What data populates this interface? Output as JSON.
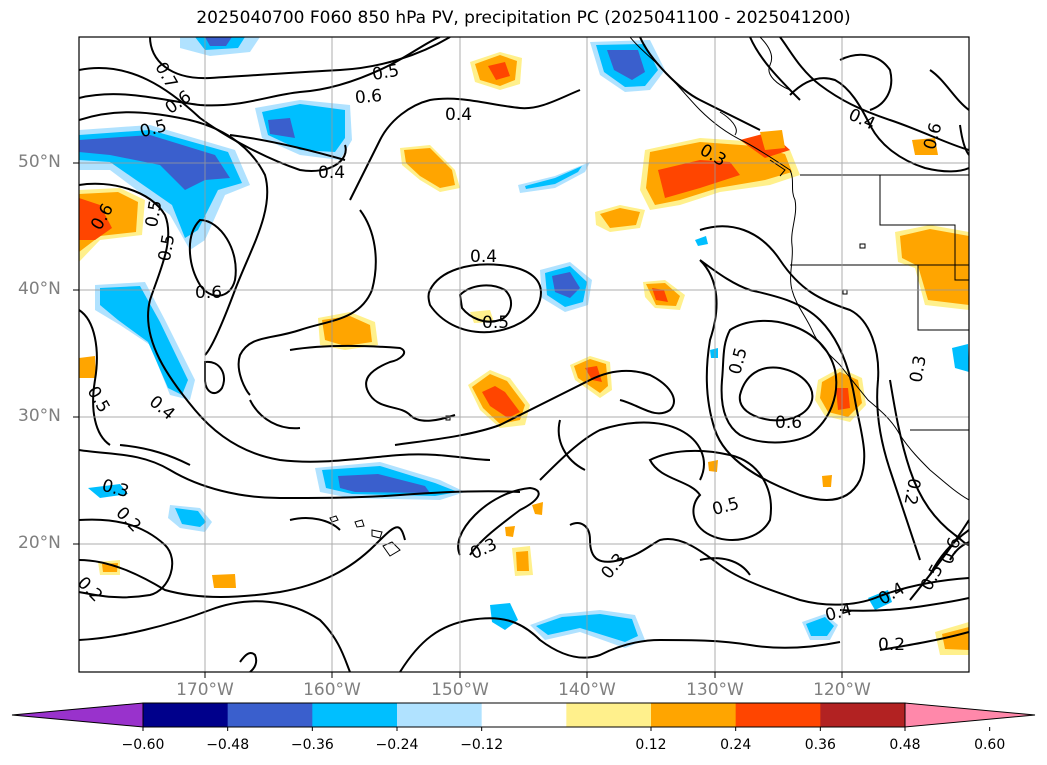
{
  "title": "2025040700 F060 850 hPa PV, precipitation PC (2025041100 - 2025041200)",
  "lat_labels": [
    "50°N",
    "40°N",
    "30°N",
    "20°N"
  ],
  "lon_labels": [
    "170°W",
    "160°W",
    "150°W",
    "140°W",
    "130°W",
    "120°W"
  ],
  "contour_labels": [
    "0.7",
    "0.6",
    "0.5",
    "0.6",
    "0.5",
    "0.5",
    "0.6",
    "0.4",
    "0.5",
    "0.3",
    "0.2",
    "0.2",
    "0.6",
    "0.4",
    "0.4",
    "0.5",
    "0.3",
    "0.4",
    "0.5",
    "0.6",
    "0.5",
    "0.3",
    "0.4",
    "0.2",
    "0.4",
    "0.5",
    "0.6",
    "0.3",
    "0.2",
    "0.4",
    "0.6",
    "0.5",
    "0.3"
  ],
  "colorbar": {
    "ticks": [
      "−0.60",
      "−0.48",
      "−0.36",
      "−0.24",
      "−0.12",
      "0.12",
      "0.24",
      "0.36",
      "0.48",
      "0.60"
    ],
    "colors": [
      "#9932cc",
      "#00008b",
      "#3a5fcd",
      "#00bfff",
      "#b0e2ff",
      "#ffffff",
      "#fff08c",
      "#ffa500",
      "#ff4500",
      "#b22222",
      "#ff88aa"
    ]
  },
  "legend_colors": {
    "neg_048": "#00008b",
    "neg_036": "#3a5fcd",
    "neg_024": "#00bfff",
    "neg_012": "#b0e2ff",
    "pos_012": "#fff08c",
    "pos_024": "#ffa500",
    "pos_036": "#ff4500",
    "pos_048": "#b22222"
  }
}
